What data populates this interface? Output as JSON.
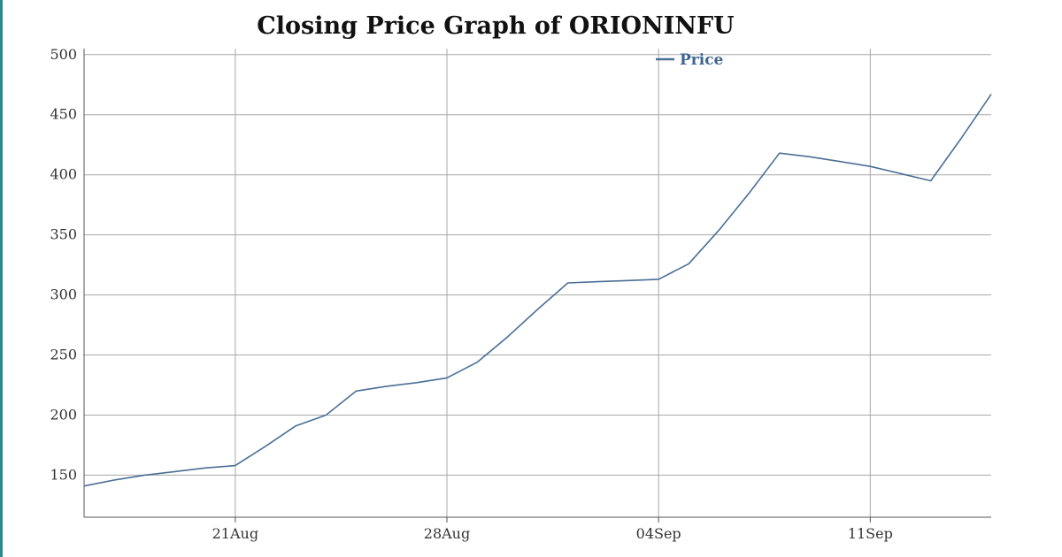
{
  "chart_data": {
    "type": "line",
    "title": "Closing Price Graph of ORIONINFU",
    "xlabel": "",
    "ylabel": "",
    "ylim": [
      115,
      505
    ],
    "yticks": [
      150,
      200,
      250,
      300,
      350,
      400,
      450,
      500
    ],
    "xticks": [
      "21Aug",
      "28Aug",
      "04Sep",
      "11Sep"
    ],
    "grid": true,
    "legend_position": "top-right",
    "series": [
      {
        "name": "Price",
        "color": "#4a6f96",
        "x": [
          "2025-08-16",
          "2025-08-17",
          "2025-08-18",
          "2025-08-19",
          "2025-08-20",
          "2025-08-21",
          "2025-08-22",
          "2025-08-23",
          "2025-08-24",
          "2025-08-25",
          "2025-08-26",
          "2025-08-27",
          "2025-08-28",
          "2025-08-29",
          "2025-08-30",
          "2025-08-31",
          "2025-09-01",
          "2025-09-02",
          "2025-09-03",
          "2025-09-04",
          "2025-09-05",
          "2025-09-06",
          "2025-09-07",
          "2025-09-08",
          "2025-09-09",
          "2025-09-10",
          "2025-09-11",
          "2025-09-12",
          "2025-09-13",
          "2025-09-14",
          "2025-09-15"
        ],
        "values": [
          141,
          146,
          150,
          153,
          156,
          158,
          174,
          191,
          200,
          220,
          224,
          227,
          231,
          244,
          265,
          288,
          310,
          311,
          312,
          313,
          326,
          354,
          385,
          418,
          415,
          411,
          407,
          401,
          395,
          430,
          467
        ]
      }
    ]
  }
}
